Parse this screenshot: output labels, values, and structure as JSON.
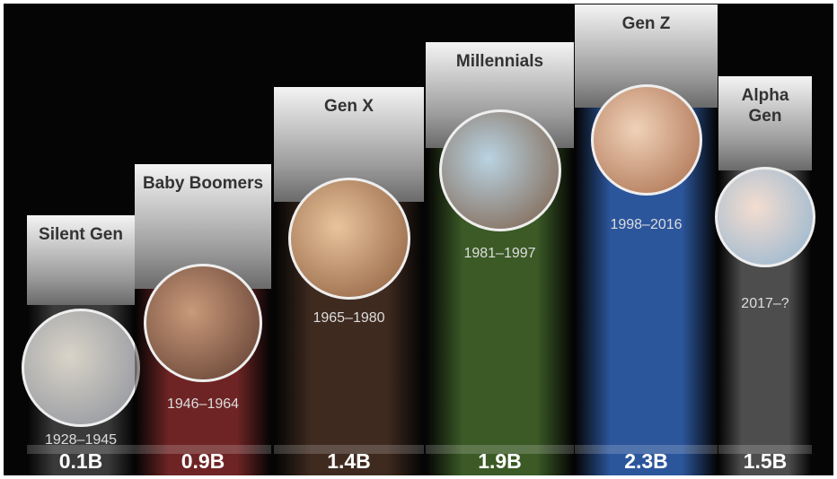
{
  "generations": [
    {
      "name": "Silent Gen",
      "years": "1928–1945",
      "population": "0.1B"
    },
    {
      "name": "Baby Boomers",
      "years": "1946–1964",
      "population": "0.9B"
    },
    {
      "name": "Gen X",
      "years": "1965–1980",
      "population": "1.4B"
    },
    {
      "name": "Millennials",
      "years": "1981–1997",
      "population": "1.9B"
    },
    {
      "name": "Gen Z",
      "years": "1998–2016",
      "population": "2.3B"
    },
    {
      "name": "Alpha Gen",
      "years": "2017–?",
      "population": "1.5B"
    }
  ]
}
